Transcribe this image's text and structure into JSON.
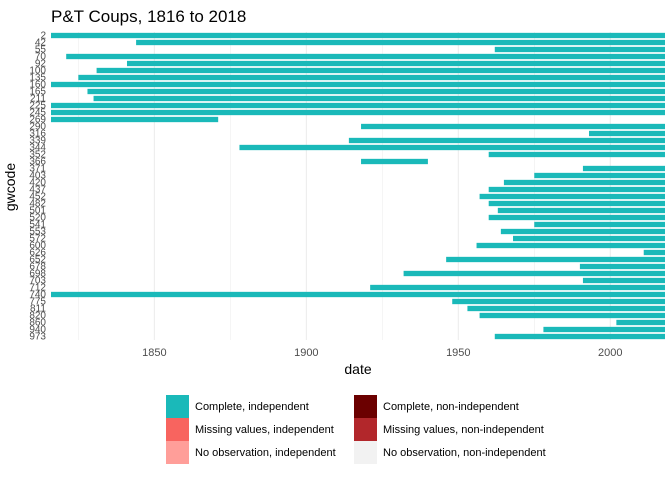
{
  "chart_data": {
    "type": "timeline",
    "title": "P&T Coups, 1816 to 2018",
    "xlabel": "date",
    "ylabel": "gwcode",
    "xlim": [
      1816,
      2018
    ],
    "x_ticks": [
      1850,
      1900,
      1950,
      2000
    ],
    "y_tick_labels": [
      "2",
      "42",
      "55",
      "70",
      "92",
      "100",
      "135",
      "160",
      "165",
      "211",
      "225",
      "245",
      "269",
      "290",
      "316",
      "339",
      "344",
      "352",
      "366",
      "371",
      "403",
      "420",
      "437",
      "452",
      "482",
      "501",
      "520",
      "541",
      "553",
      "572",
      "600",
      "626",
      "652",
      "678",
      "698",
      "703",
      "712",
      "740",
      "775",
      "811",
      "820",
      "860",
      "940",
      "973"
    ],
    "grid": true,
    "colors": {
      "complete_independent": "#1ab9b9",
      "complete_nonindependent": "#6b0000",
      "missing_independent": "#f8645f",
      "missing_nonindependent": "#b2272b",
      "noobs_independent": "#ff9e99",
      "noobs_nonindependent": "#f2f2f2"
    },
    "legend": {
      "placement": "bottom",
      "entries": [
        {
          "label": "Complete, independent",
          "key": "complete_independent"
        },
        {
          "label": "Complete, non-independent",
          "key": "complete_nonindependent"
        },
        {
          "label": "Missing values, independent",
          "key": "missing_independent"
        },
        {
          "label": "Missing values, non-independent",
          "key": "missing_nonindependent"
        },
        {
          "label": "No observation, independent",
          "key": "noobs_independent"
        },
        {
          "label": "No observation, non-independent",
          "key": "noobs_nonindependent"
        }
      ]
    },
    "series": [
      {
        "gwcode": "2",
        "start": 1816,
        "end": 2018
      },
      {
        "gwcode": "42",
        "start": 1844,
        "end": 2018
      },
      {
        "gwcode": "55",
        "start": 1962,
        "end": 2018
      },
      {
        "gwcode": "70",
        "start": 1821,
        "end": 2018
      },
      {
        "gwcode": "92",
        "start": 1841,
        "end": 2018
      },
      {
        "gwcode": "100",
        "start": 1831,
        "end": 2018
      },
      {
        "gwcode": "135",
        "start": 1825,
        "end": 2018
      },
      {
        "gwcode": "160",
        "start": 1816,
        "end": 2018
      },
      {
        "gwcode": "165",
        "start": 1828,
        "end": 2018
      },
      {
        "gwcode": "211",
        "start": 1830,
        "end": 2018
      },
      {
        "gwcode": "225",
        "start": 1816,
        "end": 2018
      },
      {
        "gwcode": "245",
        "start": 1816,
        "end": 2018
      },
      {
        "gwcode": "269",
        "start": 1816,
        "end": 1871
      },
      {
        "gwcode": "290",
        "start": 1918,
        "end": 2018
      },
      {
        "gwcode": "316",
        "start": 1993,
        "end": 2018
      },
      {
        "gwcode": "339",
        "start": 1914,
        "end": 2018
      },
      {
        "gwcode": "344",
        "start": 1878,
        "end": 2018
      },
      {
        "gwcode": "352",
        "start": 1960,
        "end": 2018
      },
      {
        "gwcode": "366",
        "start": 1918,
        "end": 1940
      },
      {
        "gwcode": "371",
        "start": 1991,
        "end": 2018
      },
      {
        "gwcode": "403",
        "start": 1975,
        "end": 2018
      },
      {
        "gwcode": "420",
        "start": 1965,
        "end": 2018
      },
      {
        "gwcode": "437",
        "start": 1960,
        "end": 2018
      },
      {
        "gwcode": "452",
        "start": 1957,
        "end": 2018
      },
      {
        "gwcode": "482",
        "start": 1960,
        "end": 2018
      },
      {
        "gwcode": "501",
        "start": 1963,
        "end": 2018
      },
      {
        "gwcode": "520",
        "start": 1960,
        "end": 2018
      },
      {
        "gwcode": "541",
        "start": 1975,
        "end": 2018
      },
      {
        "gwcode": "553",
        "start": 1964,
        "end": 2018
      },
      {
        "gwcode": "572",
        "start": 1968,
        "end": 2018
      },
      {
        "gwcode": "600",
        "start": 1956,
        "end": 2018
      },
      {
        "gwcode": "626",
        "start": 2011,
        "end": 2018
      },
      {
        "gwcode": "652",
        "start": 1946,
        "end": 2018
      },
      {
        "gwcode": "678",
        "start": 1990,
        "end": 2018
      },
      {
        "gwcode": "698",
        "start": 1932,
        "end": 2018
      },
      {
        "gwcode": "703",
        "start": 1991,
        "end": 2018
      },
      {
        "gwcode": "712",
        "start": 1921,
        "end": 2018
      },
      {
        "gwcode": "740",
        "start": 1816,
        "end": 2018
      },
      {
        "gwcode": "775",
        "start": 1948,
        "end": 2018
      },
      {
        "gwcode": "811",
        "start": 1953,
        "end": 2018
      },
      {
        "gwcode": "820",
        "start": 1957,
        "end": 2018
      },
      {
        "gwcode": "860",
        "start": 2002,
        "end": 2018
      },
      {
        "gwcode": "940",
        "start": 1978,
        "end": 2018
      },
      {
        "gwcode": "973",
        "start": 1962,
        "end": 2018
      }
    ]
  }
}
